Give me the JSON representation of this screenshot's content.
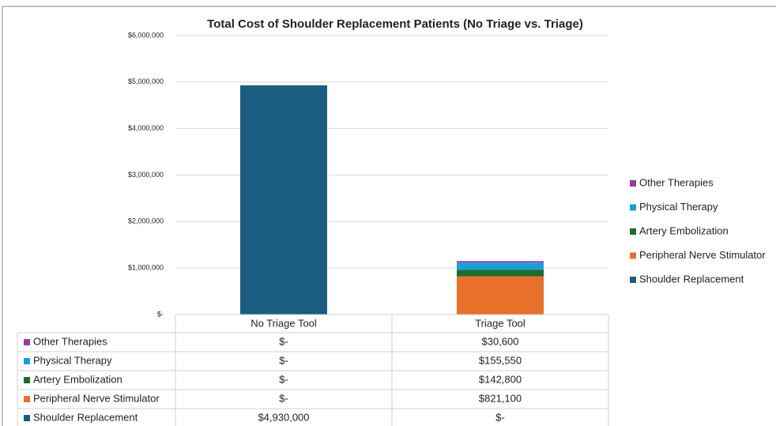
{
  "chart_data": {
    "type": "stacked_bar",
    "title": "Total Cost of Shoulder Replacement Patients (No Triage vs. Triage)",
    "categories": [
      "No Triage Tool",
      "Triage Tool"
    ],
    "series": [
      {
        "name": "Shoulder Replacement",
        "color": "#1b5d80",
        "values": [
          4930000,
          0
        ],
        "value_labels": [
          "$4,930,000",
          "$-"
        ]
      },
      {
        "name": "Peripheral Nerve Stimulator",
        "color": "#e8702a",
        "values": [
          0,
          821100
        ],
        "value_labels": [
          "$-",
          "$821,100"
        ]
      },
      {
        "name": "Artery Embolization",
        "color": "#1e6b2e",
        "values": [
          0,
          142800
        ],
        "value_labels": [
          "$-",
          "$142,800"
        ]
      },
      {
        "name": "Physical Therapy",
        "color": "#1aa0d8",
        "values": [
          0,
          155550
        ],
        "value_labels": [
          "$-",
          "$155,550"
        ]
      },
      {
        "name": "Other Therapies",
        "color": "#9b3aa0",
        "values": [
          0,
          30600
        ],
        "value_labels": [
          "$-",
          "$30,600"
        ]
      }
    ],
    "ylim": [
      0,
      6000000
    ],
    "yticks": [
      {
        "value": 0,
        "label": "$-"
      },
      {
        "value": 1000000,
        "label": "$1,000,000"
      },
      {
        "value": 2000000,
        "label": "$2,000,000"
      },
      {
        "value": 3000000,
        "label": "$3,000,000"
      },
      {
        "value": 4000000,
        "label": "$4,000,000"
      },
      {
        "value": 5000000,
        "label": "$5,000,000"
      },
      {
        "value": 6000000,
        "label": "$6,000,000"
      }
    ],
    "grid": true,
    "legend": "right"
  }
}
